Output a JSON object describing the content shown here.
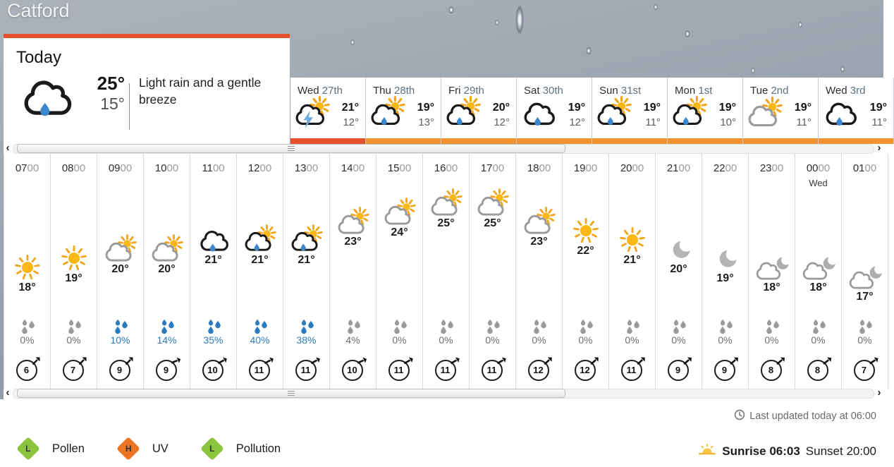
{
  "location": "Catford",
  "today": {
    "label": "Today",
    "high": "25°",
    "low": "15°",
    "description": "Light rain and a gentle breeze",
    "icon": "rain"
  },
  "day_tabs": [
    {
      "day": "Wed",
      "date": "27th",
      "high": "21°",
      "low": "12°",
      "icon": "thunder-sun",
      "selected": true
    },
    {
      "day": "Thu",
      "date": "28th",
      "high": "19°",
      "low": "13°",
      "icon": "rain-sun",
      "selected": false
    },
    {
      "day": "Fri",
      "date": "29th",
      "high": "20°",
      "low": "12°",
      "icon": "rain-sun",
      "selected": false
    },
    {
      "day": "Sat",
      "date": "30th",
      "high": "19°",
      "low": "12°",
      "icon": "rain",
      "selected": false
    },
    {
      "day": "Sun",
      "date": "31st",
      "high": "19°",
      "low": "11°",
      "icon": "rain-sun",
      "selected": false
    },
    {
      "day": "Mon",
      "date": "1st",
      "high": "19°",
      "low": "10°",
      "icon": "rain-sun",
      "selected": false
    },
    {
      "day": "Tue",
      "date": "2nd",
      "high": "19°",
      "low": "11°",
      "icon": "light-cloud-sun",
      "selected": false
    },
    {
      "day": "Wed",
      "date": "3rd",
      "high": "19°",
      "low": "11°",
      "icon": "rain",
      "selected": false
    }
  ],
  "hourly": [
    {
      "time": "0700",
      "temp": 18,
      "icon": "sun",
      "precip": "0%",
      "precip_active": false,
      "wind": 6,
      "wind_dir": 45
    },
    {
      "time": "0800",
      "temp": 19,
      "icon": "sun",
      "precip": "0%",
      "precip_active": false,
      "wind": 7,
      "wind_dir": 45
    },
    {
      "time": "0900",
      "temp": 20,
      "icon": "light-cloud-sun",
      "precip": "10%",
      "precip_active": true,
      "wind": 9,
      "wind_dir": 45
    },
    {
      "time": "1000",
      "temp": 20,
      "icon": "light-cloud-sun",
      "precip": "14%",
      "precip_active": true,
      "wind": 9,
      "wind_dir": 68
    },
    {
      "time": "1100",
      "temp": 21,
      "icon": "rain",
      "precip": "35%",
      "precip_active": true,
      "wind": 10,
      "wind_dir": 62
    },
    {
      "time": "1200",
      "temp": 21,
      "icon": "rain-sun",
      "precip": "40%",
      "precip_active": true,
      "wind": 11,
      "wind_dir": 62
    },
    {
      "time": "1300",
      "temp": 21,
      "icon": "rain-sun",
      "precip": "38%",
      "precip_active": true,
      "wind": 11,
      "wind_dir": 62
    },
    {
      "time": "1400",
      "temp": 23,
      "icon": "light-cloud-sun",
      "precip": "4%",
      "precip_active": false,
      "wind": 10,
      "wind_dir": 66
    },
    {
      "time": "1500",
      "temp": 24,
      "icon": "light-cloud-sun",
      "precip": "0%",
      "precip_active": false,
      "wind": 11,
      "wind_dir": 60
    },
    {
      "time": "1600",
      "temp": 25,
      "icon": "light-cloud-sun",
      "precip": "0%",
      "precip_active": false,
      "wind": 11,
      "wind_dir": 60
    },
    {
      "time": "1700",
      "temp": 25,
      "icon": "light-cloud-sun",
      "precip": "0%",
      "precip_active": false,
      "wind": 11,
      "wind_dir": 60
    },
    {
      "time": "1800",
      "temp": 23,
      "icon": "light-cloud-sun",
      "precip": "0%",
      "precip_active": false,
      "wind": 12,
      "wind_dir": 48
    },
    {
      "time": "1900",
      "temp": 22,
      "icon": "sun",
      "precip": "0%",
      "precip_active": false,
      "wind": 12,
      "wind_dir": 48
    },
    {
      "time": "2000",
      "temp": 21,
      "icon": "sun",
      "precip": "0%",
      "precip_active": false,
      "wind": 11,
      "wind_dir": 48
    },
    {
      "time": "2100",
      "temp": 20,
      "icon": "moon",
      "precip": "0%",
      "precip_active": false,
      "wind": 9,
      "wind_dir": 50
    },
    {
      "time": "2200",
      "temp": 19,
      "icon": "moon",
      "precip": "0%",
      "precip_active": false,
      "wind": 9,
      "wind_dir": 50
    },
    {
      "time": "2300",
      "temp": 18,
      "icon": "cloud-moon",
      "precip": "0%",
      "precip_active": false,
      "wind": 8,
      "wind_dir": 50
    },
    {
      "time": "0000",
      "sub": "Wed",
      "temp": 18,
      "icon": "cloud-moon",
      "precip": "0%",
      "precip_active": false,
      "wind": 8,
      "wind_dir": 52
    },
    {
      "time": "0100",
      "temp": 17,
      "icon": "cloud-moon",
      "precip": "0%",
      "precip_active": false,
      "wind": 7,
      "wind_dir": 58
    }
  ],
  "env_badges": [
    {
      "label": "Pollen",
      "level": "L",
      "color": "#8bc43f"
    },
    {
      "label": "UV",
      "level": "H",
      "color": "#ee7425"
    },
    {
      "label": "Pollution",
      "level": "L",
      "color": "#8bc43f"
    }
  ],
  "last_updated": "Last updated today at 06:00",
  "sunrise_label": "Sunrise 06:03",
  "sunset_label": "Sunset 20:00",
  "colors": {
    "selected_tab_underline": "#e8512e",
    "tab_underline": "#f1942f",
    "precip_blue": "#2b7bc1",
    "precip_grey": "#6f6f6f"
  }
}
